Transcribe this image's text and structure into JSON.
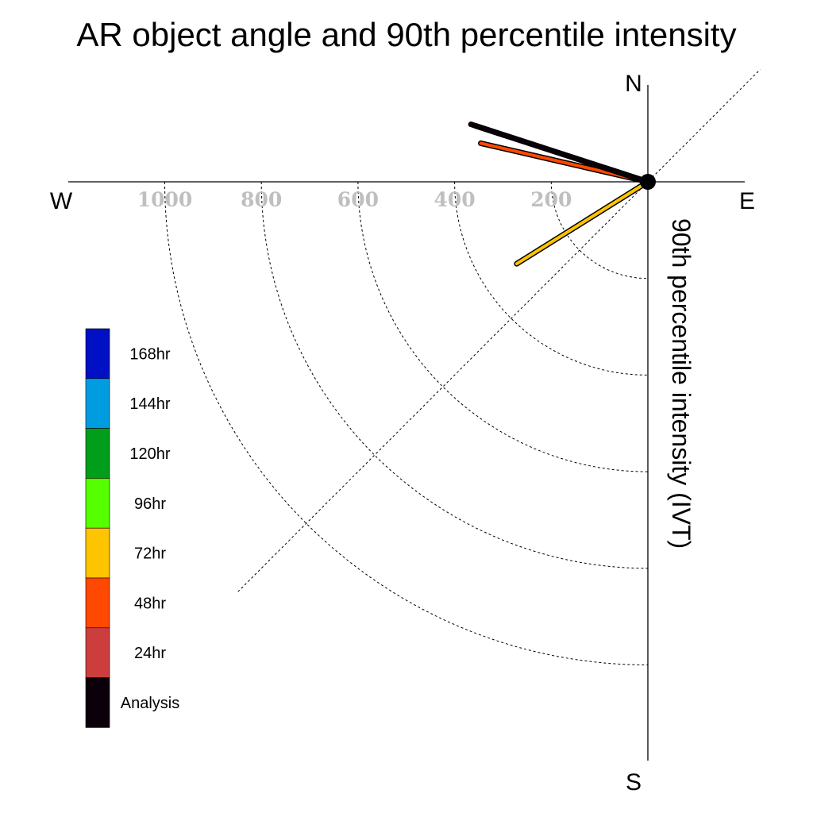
{
  "chart_data": {
    "type": "polar-line",
    "title": "AR object angle and 90th percentile intensity",
    "ylabel": "90th percentile intensity (IVT)",
    "directions": {
      "north": "N",
      "south": "S",
      "west": "W",
      "east": "E"
    },
    "radial_ticks": [
      1000,
      800,
      600,
      400,
      200
    ],
    "rmax": 1200,
    "grid": true,
    "legend": {
      "position": "left",
      "entries": [
        {
          "label": "168hr",
          "color": "#0010c4"
        },
        {
          "label": "144hr",
          "color": "#009ce0"
        },
        {
          "label": "120hr",
          "color": "#009e1a"
        },
        {
          "label": "96hr",
          "color": "#55ff00"
        },
        {
          "label": "72hr",
          "color": "#ffc400"
        },
        {
          "label": "48hr",
          "color": "#ff4800"
        },
        {
          "label": "24hr",
          "color": "#cc3e3e"
        },
        {
          "label": "Analysis",
          "color": "#0b0009"
        }
      ]
    },
    "series": [
      {
        "name": "Analysis",
        "angle_deg_from_north": 288,
        "intensity": 385,
        "color": "#0b0009"
      },
      {
        "name": "24hr",
        "angle_deg_from_north": 288,
        "intensity": 375,
        "color": "#cc3e3e"
      },
      {
        "name": "48hr",
        "angle_deg_from_north": 283,
        "intensity": 355,
        "color": "#ff4800"
      },
      {
        "name": "72hr",
        "angle_deg_from_north": 238,
        "intensity": 320,
        "color": "#ffc400"
      }
    ]
  }
}
